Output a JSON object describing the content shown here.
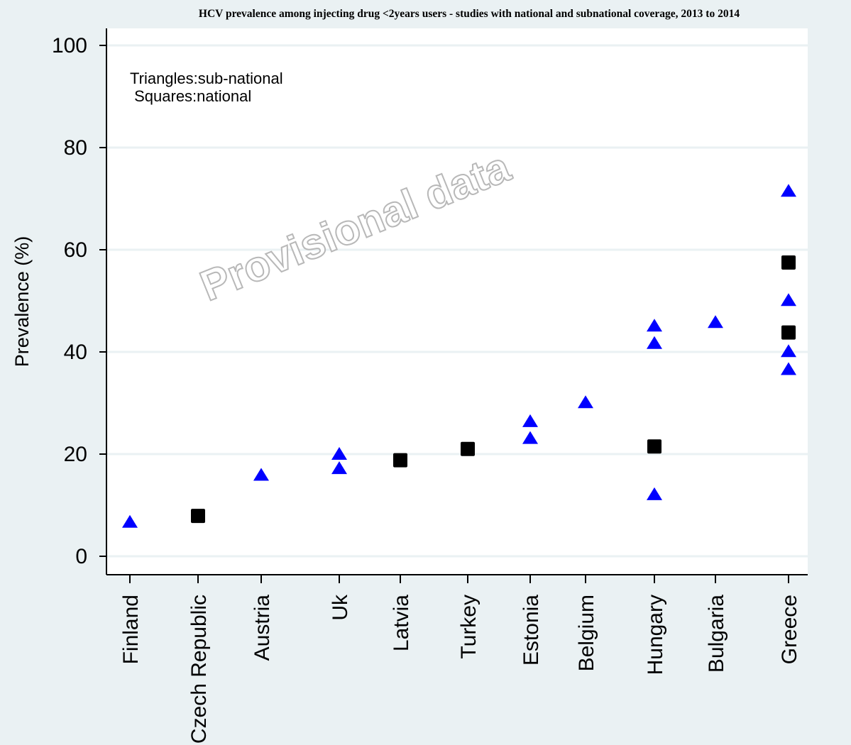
{
  "chart_data": {
    "type": "scatter",
    "title": "HCV prevalence among injecting drug <2years users - studies with national and subnational coverage, 2013 to 2014",
    "ylabel": "Prevalence (%)",
    "xlabel": "",
    "ylim": [
      0,
      100
    ],
    "yticks": [
      0,
      20,
      40,
      60,
      80,
      100
    ],
    "grid": true,
    "categories": [
      "Finland",
      "Czech Republic",
      "Austria",
      "Uk",
      "Latvia",
      "Turkey",
      "Estonia",
      "Belgium",
      "Hungary",
      "Bulgaria",
      "Greece"
    ],
    "annotation": {
      "line1": "Triangles:sub-national",
      "line2": " Squares:national"
    },
    "watermark": "Provisional data",
    "colors": {
      "subnational": "#0000ff",
      "national": "#000000"
    },
    "series": [
      {
        "marker": "triangle",
        "points": [
          {
            "x": "Finland",
            "y": 6.7
          },
          {
            "x": "Austria",
            "y": 15.9
          },
          {
            "x": "Uk",
            "y": 20.0
          },
          {
            "x": "Uk",
            "y": 17.2
          },
          {
            "x": "Estonia",
            "y": 26.4
          },
          {
            "x": "Estonia",
            "y": 23.1
          },
          {
            "x": "Belgium",
            "y": 30.1
          },
          {
            "x": "Hungary",
            "y": 45.1
          },
          {
            "x": "Hungary",
            "y": 41.7
          },
          {
            "x": "Hungary",
            "y": 12.1
          },
          {
            "x": "Bulgaria",
            "y": 45.8
          },
          {
            "x": "Greece",
            "y": 71.5
          },
          {
            "x": "Greece",
            "y": 50.1
          },
          {
            "x": "Greece",
            "y": 40.1
          },
          {
            "x": "Greece",
            "y": 36.6
          }
        ]
      },
      {
        "marker": "square",
        "points": [
          {
            "x": "Czech Republic",
            "y": 7.9
          },
          {
            "x": "Latvia",
            "y": 18.8
          },
          {
            "x": "Turkey",
            "y": 21.0
          },
          {
            "x": "Hungary",
            "y": 21.5
          },
          {
            "x": "Greece",
            "y": 57.5
          },
          {
            "x": "Greece",
            "y": 43.8
          }
        ]
      }
    ]
  }
}
